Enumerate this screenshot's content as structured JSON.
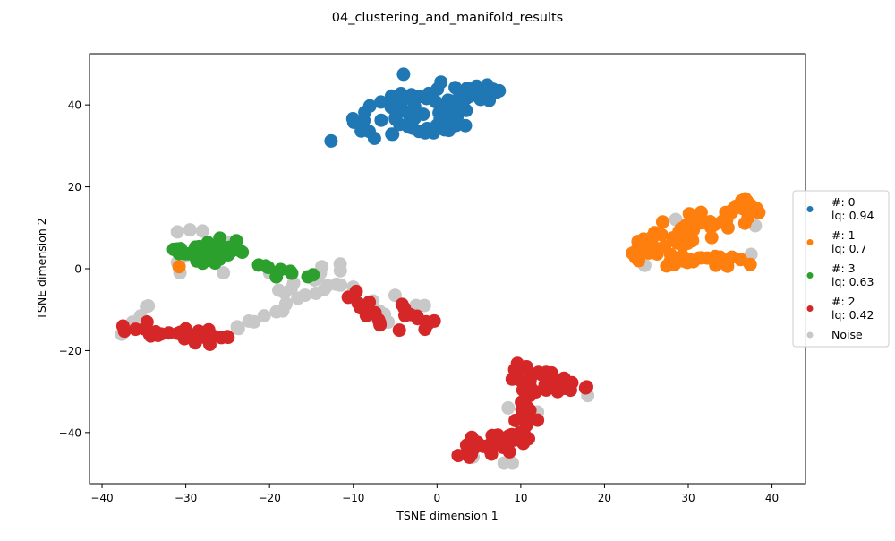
{
  "figure": {
    "title": "04_clustering_and_manifold_results"
  },
  "colors": {
    "c0": "#1f77b4",
    "c1": "#ff7f0e",
    "c3": "#2ca02c",
    "c2": "#d62728",
    "noise": "#c8c8c8"
  },
  "chart_data": {
    "type": "scatter",
    "title": "04_clustering_and_manifold_results",
    "xlabel": "TSNE dimension 1",
    "ylabel": "TSNE dimension 2",
    "xlim": [
      -41.5,
      44
    ],
    "ylim": [
      -52.5,
      52.5
    ],
    "xticks": [
      -40,
      -30,
      -20,
      -10,
      0,
      10,
      20,
      30,
      40
    ],
    "yticks": [
      -40,
      -20,
      0,
      20,
      40
    ],
    "grid": false,
    "legend": {
      "placement": "right-outside"
    },
    "series": [
      {
        "key": "c0",
        "legend_lines": [
          "#: 0",
          "lq: 0.94"
        ],
        "color": "#1f77b4",
        "segments": [
          {
            "x0": -10,
            "y0": 35,
            "x1": -1,
            "y1": 36,
            "n": 22,
            "sx": 1.6,
            "sy": 2.2
          },
          {
            "x0": -6,
            "y0": 40,
            "x1": 5,
            "y1": 44,
            "n": 30,
            "sx": 2.0,
            "sy": 2.4
          },
          {
            "x0": -4,
            "y0": 33,
            "x1": 3,
            "y1": 35,
            "n": 20,
            "sx": 1.8,
            "sy": 1.6
          },
          {
            "x0": 0,
            "y0": 38,
            "x1": 7,
            "y1": 43,
            "n": 18,
            "sx": 1.5,
            "sy": 1.8
          }
        ],
        "points": [
          [
            -4,
            47.5
          ],
          [
            7,
            43
          ]
        ]
      },
      {
        "key": "c1",
        "legend_lines": [
          "#: 1",
          "lq: 0.7"
        ],
        "color": "#ff7f0e",
        "segments": [
          {
            "x0": 24,
            "y0": 4.5,
            "x1": 38,
            "y1": 15.5,
            "n": 70,
            "sx": 1.5,
            "sy": 2.2
          },
          {
            "x0": 26,
            "y0": 2,
            "x1": 36,
            "y1": 2,
            "n": 25,
            "sx": 1.8,
            "sy": 1.3
          }
        ],
        "points": [
          [
            -30.8,
            0.5
          ]
        ]
      },
      {
        "key": "c3",
        "legend_lines": [
          "#: 3",
          "lq: 0.63"
        ],
        "color": "#2ca02c",
        "segments": [
          {
            "x0": -30,
            "y0": 4,
            "x1": -24,
            "y1": 4,
            "n": 45,
            "sx": 1.7,
            "sy": 2.0
          },
          {
            "x0": -21,
            "y0": 0.5,
            "x1": -15,
            "y1": -2,
            "n": 7,
            "sx": 0.6,
            "sy": 0.7
          }
        ],
        "points": [
          [
            -21.3,
            0.9
          ],
          [
            -19.2,
            -2
          ]
        ]
      },
      {
        "key": "c2",
        "legend_lines": [
          "#: 2",
          "lq: 0.42"
        ],
        "color": "#d62728",
        "segments": [
          {
            "x0": -37,
            "y0": -15,
            "x1": -25,
            "y1": -17,
            "n": 35,
            "sx": 1.1,
            "sy": 1.4
          },
          {
            "x0": -10.5,
            "y0": -7,
            "x1": -6.5,
            "y1": -13,
            "n": 12,
            "sx": 0.8,
            "sy": 1.2
          },
          {
            "x0": -4,
            "y0": -10,
            "x1": -1,
            "y1": -14,
            "n": 10,
            "sx": 0.8,
            "sy": 1.1
          },
          {
            "x0": 4,
            "y0": -44,
            "x1": 10,
            "y1": -41,
            "n": 35,
            "sx": 1.8,
            "sy": 1.5
          },
          {
            "x0": 10,
            "y0": -40,
            "x1": 11.5,
            "y1": -30,
            "n": 20,
            "sx": 1.0,
            "sy": 2.5
          },
          {
            "x0": 9,
            "y0": -26,
            "x1": 17,
            "y1": -29,
            "n": 35,
            "sx": 1.8,
            "sy": 1.8
          }
        ],
        "points": [
          [
            -4.5,
            -15
          ],
          [
            12,
            -37
          ]
        ]
      },
      {
        "key": "noise",
        "legend_lines": [
          "Noise"
        ],
        "color": "#c8c8c8",
        "segments": [
          {
            "x0": -37.5,
            "y0": -16,
            "x1": -34.5,
            "y1": -8.5,
            "n": 6,
            "sx": 0.4,
            "sy": 0.6
          },
          {
            "x0": -24,
            "y0": -15,
            "x1": -13,
            "y1": -4,
            "n": 14,
            "sx": 0.7,
            "sy": 0.9
          },
          {
            "x0": -19,
            "y0": -6,
            "x1": -12,
            "y1": 1,
            "n": 10,
            "sx": 1.0,
            "sy": 1.0
          },
          {
            "x0": -7.5,
            "y0": -8,
            "x1": -6,
            "y1": -14,
            "n": 5,
            "sx": 0.5,
            "sy": 1.0
          }
        ],
        "points": [
          [
            -31,
            9
          ],
          [
            -29.5,
            9.5
          ],
          [
            -28,
            9.2
          ],
          [
            -25,
            6.5
          ],
          [
            -31,
            1.5
          ],
          [
            -30.2,
            3
          ],
          [
            -11.5,
            -4
          ],
          [
            -10,
            -4.5
          ],
          [
            -12,
            -3.8
          ],
          [
            -5,
            -6.5
          ],
          [
            -2.5,
            -9
          ],
          [
            -1.5,
            -9
          ],
          [
            -30.7,
            -1
          ],
          [
            -25.5,
            -1
          ],
          [
            -20,
            -1
          ],
          [
            28.5,
            12
          ],
          [
            23.8,
            4.5
          ],
          [
            24.8,
            0.8
          ],
          [
            38,
            10.5
          ],
          [
            37.5,
            3.5
          ],
          [
            8.5,
            -34
          ],
          [
            4,
            -45
          ],
          [
            4.3,
            -46
          ],
          [
            8,
            -47.5
          ],
          [
            9,
            -47.5
          ],
          [
            18,
            -31
          ],
          [
            12,
            -35
          ]
        ]
      }
    ]
  }
}
